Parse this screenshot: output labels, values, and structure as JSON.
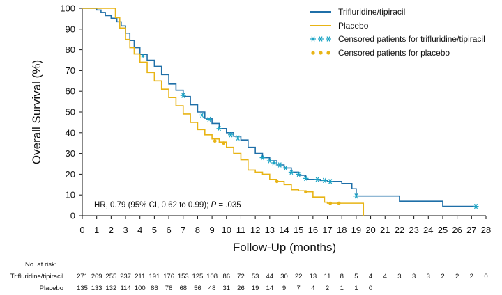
{
  "chart_data": {
    "type": "line",
    "subtype": "kaplan-meier",
    "xlabel": "Follow-Up (months)",
    "ylabel": "Overall Survival (%)",
    "xlim": [
      0,
      28
    ],
    "ylim": [
      0,
      100
    ],
    "xticks": [
      0,
      1,
      2,
      3,
      4,
      5,
      6,
      7,
      8,
      9,
      10,
      11,
      12,
      13,
      14,
      15,
      16,
      17,
      18,
      19,
      20,
      21,
      22,
      23,
      24,
      25,
      26,
      27,
      28
    ],
    "yticks": [
      0,
      10,
      20,
      30,
      40,
      50,
      60,
      70,
      80,
      90,
      100
    ],
    "annotation": {
      "prefix": "HR, 0.79 (95% CI, 0.62 to 0.99); ",
      "p_label": "P",
      "p_value": " = .035"
    },
    "legend": [
      {
        "label": "Trifluridine/tipiracil",
        "kind": "line",
        "color": "#1f6fa8"
      },
      {
        "label": "Placebo",
        "kind": "line",
        "color": "#e8b415"
      },
      {
        "label": "Censored patients for trifluridine/tipiracil",
        "kind": "censor-star",
        "color": "#1aa3c4"
      },
      {
        "label": "Censored patients for placebo",
        "kind": "censor-dot",
        "color": "#e8b415"
      }
    ],
    "series": [
      {
        "name": "Trifluridine/tipiracil",
        "color": "#1f6fa8",
        "steps": [
          [
            0,
            100
          ],
          [
            1,
            99.2
          ],
          [
            1.3,
            98
          ],
          [
            1.6,
            96.5
          ],
          [
            2,
            95.2
          ],
          [
            2.4,
            93.5
          ],
          [
            2.7,
            91.5
          ],
          [
            3,
            88
          ],
          [
            3.3,
            84.5
          ],
          [
            3.6,
            81
          ],
          [
            4,
            77.8
          ],
          [
            4.5,
            75
          ],
          [
            5,
            72
          ],
          [
            5.5,
            68
          ],
          [
            6,
            63.5
          ],
          [
            6.5,
            60.5
          ],
          [
            7,
            57.5
          ],
          [
            7.5,
            53.5
          ],
          [
            8,
            50
          ],
          [
            8.5,
            47
          ],
          [
            9,
            44.5
          ],
          [
            9.5,
            42
          ],
          [
            10,
            40
          ],
          [
            10.5,
            38.3
          ],
          [
            11,
            36.5
          ],
          [
            11.5,
            33
          ],
          [
            12,
            30
          ],
          [
            12.5,
            28
          ],
          [
            13,
            26.5
          ],
          [
            13.5,
            24.5
          ],
          [
            14,
            23
          ],
          [
            14.5,
            21
          ],
          [
            15,
            19.5
          ],
          [
            15.5,
            17.5
          ],
          [
            16.5,
            17
          ],
          [
            17,
            16.5
          ],
          [
            18,
            15.5
          ],
          [
            18.7,
            13
          ],
          [
            19,
            9.5
          ],
          [
            22,
            7
          ],
          [
            25,
            4.5
          ],
          [
            27.3,
            4.5
          ]
        ],
        "censored": [
          [
            4.2,
            77
          ],
          [
            7,
            58
          ],
          [
            8.3,
            48.5
          ],
          [
            8.8,
            46.5
          ],
          [
            9.5,
            42
          ],
          [
            10.3,
            39
          ],
          [
            10.8,
            37.5
          ],
          [
            12.5,
            28
          ],
          [
            13,
            26.5
          ],
          [
            13.3,
            25.5
          ],
          [
            13.7,
            24.5
          ],
          [
            14.1,
            23
          ],
          [
            14.5,
            21
          ],
          [
            15,
            20
          ],
          [
            15.5,
            18
          ],
          [
            16.3,
            17.5
          ],
          [
            16.8,
            17
          ],
          [
            17.2,
            16.5
          ],
          [
            19,
            9.5
          ],
          [
            27.3,
            4.5
          ]
        ]
      },
      {
        "name": "Placebo",
        "color": "#e8b415",
        "steps": [
          [
            0,
            100
          ],
          [
            1,
            100
          ],
          [
            2.2,
            100
          ],
          [
            2.3,
            95.5
          ],
          [
            2.6,
            90.5
          ],
          [
            3,
            85
          ],
          [
            3.3,
            81
          ],
          [
            3.6,
            78
          ],
          [
            4,
            74
          ],
          [
            4.5,
            69
          ],
          [
            5,
            65
          ],
          [
            5.5,
            61
          ],
          [
            6,
            57
          ],
          [
            6.5,
            53
          ],
          [
            7,
            49
          ],
          [
            7.5,
            45
          ],
          [
            8,
            41.5
          ],
          [
            8.5,
            39
          ],
          [
            9,
            37
          ],
          [
            9.5,
            35.5
          ],
          [
            10,
            33
          ],
          [
            10.5,
            30
          ],
          [
            11,
            27
          ],
          [
            11.5,
            22
          ],
          [
            12,
            21
          ],
          [
            12.5,
            20
          ],
          [
            13,
            17.5
          ],
          [
            13.5,
            16.5
          ],
          [
            14,
            15
          ],
          [
            14.5,
            12.5
          ],
          [
            15,
            12
          ],
          [
            15.5,
            11.5
          ],
          [
            16,
            9
          ],
          [
            16.8,
            6.5
          ],
          [
            17,
            6
          ],
          [
            17.5,
            6
          ],
          [
            19.5,
            0
          ]
        ],
        "censored": [
          [
            9.2,
            36
          ],
          [
            9.8,
            35
          ],
          [
            13.5,
            16.5
          ],
          [
            15.5,
            11.5
          ],
          [
            17.2,
            6
          ],
          [
            17.8,
            6
          ]
        ]
      }
    ],
    "risk_table": {
      "header": "No. at risk:",
      "timepoints": [
        0,
        1,
        2,
        3,
        4,
        5,
        6,
        7,
        8,
        9,
        10,
        11,
        12,
        13,
        14,
        15,
        16,
        17,
        18,
        19,
        20,
        21,
        22,
        23,
        24,
        25,
        26,
        27,
        28
      ],
      "rows": [
        {
          "label": "Trifluridine/tipiracil",
          "values": [
            "271",
            "269",
            "255",
            "237",
            "211",
            "191",
            "176",
            "153",
            "125",
            "108",
            "86",
            "72",
            "53",
            "44",
            "30",
            "22",
            "13",
            "11",
            "8",
            "5",
            "4",
            "4",
            "3",
            "3",
            "3",
            "2",
            "2",
            "2",
            "0"
          ]
        },
        {
          "label": "Placebo",
          "values": [
            "135",
            "133",
            "132",
            "114",
            "100",
            "86",
            "78",
            "68",
            "56",
            "48",
            "31",
            "26",
            "19",
            "14",
            "9",
            "7",
            "4",
            "2",
            "1",
            "1",
            "0"
          ]
        }
      ]
    }
  }
}
